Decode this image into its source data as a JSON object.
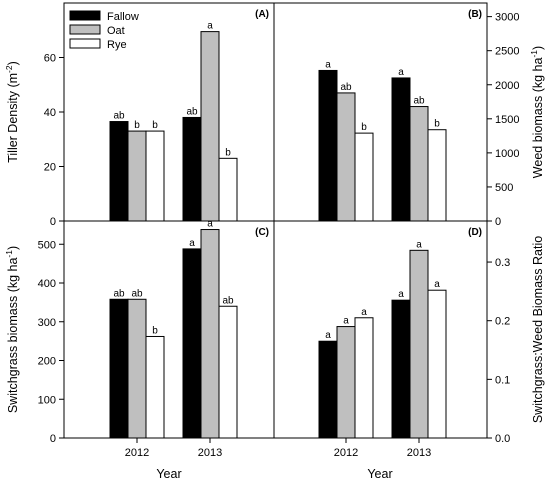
{
  "xlabel": "Year",
  "legend": [
    {
      "name": "Fallow",
      "color": "#000000"
    },
    {
      "name": "Oat",
      "color": "#bfbfbf"
    },
    {
      "name": "Rye",
      "color": "#ffffff"
    }
  ],
  "chart_data": [
    {
      "type": "bar",
      "panel_label": "(A)",
      "ylabel": "Tiller Density (m",
      "ylabel_sup": "-2",
      "ylabel_end": ")",
      "ylim": [
        0,
        80
      ],
      "yticks": [
        0,
        20,
        40,
        60
      ],
      "categories": [
        "2012",
        "2013"
      ],
      "series": [
        {
          "name": "Fallow",
          "values": [
            36.5,
            38.0
          ],
          "letters": [
            "ab",
            "ab"
          ]
        },
        {
          "name": "Oat",
          "values": [
            33.0,
            69.5
          ],
          "letters": [
            "b",
            "a"
          ]
        },
        {
          "name": "Rye",
          "values": [
            33.0,
            23.0
          ],
          "letters": [
            "b",
            "b"
          ]
        }
      ]
    },
    {
      "type": "bar",
      "panel_label": "(B)",
      "ylabel": "Weed biomass (kg ha",
      "ylabel_sup": "-1",
      "ylabel_end": ")",
      "ylim": [
        0,
        3200
      ],
      "yticks": [
        0,
        500,
        1000,
        1500,
        2000,
        2500,
        3000
      ],
      "categories": [
        "2012",
        "2013"
      ],
      "series": [
        {
          "name": "Fallow",
          "values": [
            2210,
            2100
          ],
          "letters": [
            "a",
            "a"
          ]
        },
        {
          "name": "Oat",
          "values": [
            1880,
            1680
          ],
          "letters": [
            "ab",
            "ab"
          ]
        },
        {
          "name": "Rye",
          "values": [
            1290,
            1340
          ],
          "letters": [
            "b",
            "b"
          ]
        }
      ]
    },
    {
      "type": "bar",
      "panel_label": "(C)",
      "ylabel": "Switchgrass biomass (kg ha",
      "ylabel_sup": "-1",
      "ylabel_end": ")",
      "ylim": [
        0,
        560
      ],
      "yticks": [
        0,
        100,
        200,
        300,
        400,
        500
      ],
      "categories": [
        "2012",
        "2013"
      ],
      "series": [
        {
          "name": "Fallow",
          "values": [
            358,
            488
          ],
          "letters": [
            "ab",
            "a"
          ]
        },
        {
          "name": "Oat",
          "values": [
            358,
            538
          ],
          "letters": [
            "ab",
            "a"
          ]
        },
        {
          "name": "Rye",
          "values": [
            262,
            340
          ],
          "letters": [
            "b",
            "ab"
          ]
        }
      ]
    },
    {
      "type": "bar",
      "panel_label": "(D)",
      "ylabel": "Switchgrass:Weed Biomass Ratio",
      "ylim": [
        0,
        0.37
      ],
      "yticks": [
        "0.0",
        "0.1",
        "0.2",
        "0.3"
      ],
      "categories": [
        "2012",
        "2013"
      ],
      "series": [
        {
          "name": "Fallow",
          "values": [
            0.165,
            0.235
          ],
          "letters": [
            "a",
            "a"
          ]
        },
        {
          "name": "Oat",
          "values": [
            0.19,
            0.32
          ],
          "letters": [
            "a",
            "a"
          ]
        },
        {
          "name": "Rye",
          "values": [
            0.205,
            0.252
          ],
          "letters": [
            "a",
            "a"
          ]
        }
      ]
    }
  ]
}
